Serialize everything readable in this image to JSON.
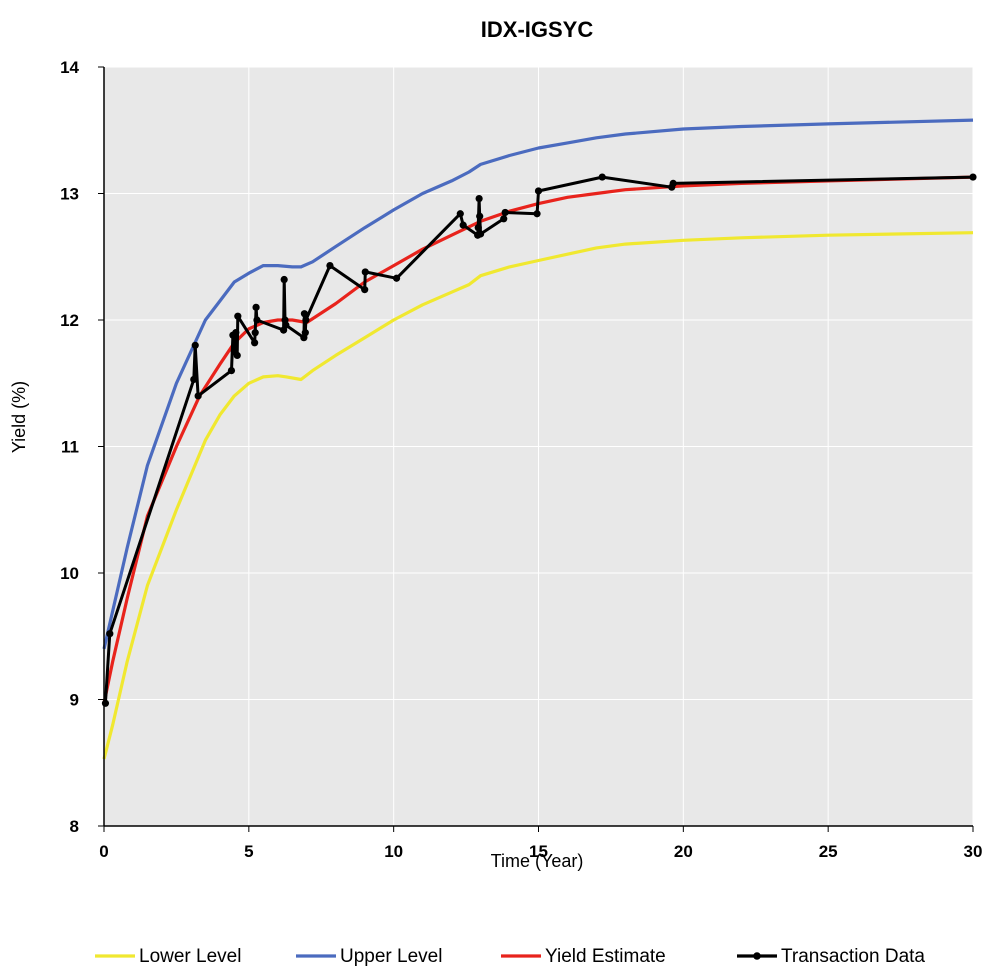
{
  "chart_data": {
    "type": "line",
    "title": "IDX-IGSYC",
    "xlabel": "Time (Year)",
    "ylabel": "Yield (%)",
    "xlim": [
      0,
      30
    ],
    "ylim": [
      8,
      14
    ],
    "xticks": [
      0,
      5,
      10,
      15,
      20,
      25,
      30
    ],
    "yticks": [
      8,
      9,
      10,
      11,
      12,
      13,
      14
    ],
    "grid": true,
    "legend": "bottom",
    "plot_background": "#e8e8e8",
    "series": [
      {
        "name": "Lower Level",
        "color": "#f0e830",
        "markers": false,
        "x": [
          0,
          0.3,
          0.8,
          1.5,
          2.5,
          3.5,
          4.0,
          4.5,
          5.0,
          5.5,
          6.0,
          6.3,
          6.8,
          7.2,
          8,
          9,
          10,
          11,
          12,
          12.6,
          13,
          14,
          15,
          16,
          17,
          18,
          20,
          22,
          25,
          30
        ],
        "y": [
          8.53,
          8.8,
          9.3,
          9.9,
          10.5,
          11.05,
          11.25,
          11.4,
          11.5,
          11.55,
          11.56,
          11.55,
          11.53,
          11.6,
          11.72,
          11.86,
          12.0,
          12.12,
          12.22,
          12.28,
          12.35,
          12.42,
          12.47,
          12.52,
          12.57,
          12.6,
          12.63,
          12.65,
          12.67,
          12.69
        ]
      },
      {
        "name": "Upper Level",
        "color": "#4b6bbf",
        "markers": false,
        "x": [
          0,
          0.3,
          0.8,
          1.5,
          2.5,
          3.5,
          4.0,
          4.5,
          5.0,
          5.5,
          6.0,
          6.5,
          6.8,
          7.2,
          8,
          9,
          10,
          11,
          12,
          12.6,
          13,
          14,
          15,
          16,
          17,
          18,
          20,
          22,
          25,
          30
        ],
        "y": [
          9.4,
          9.7,
          10.2,
          10.85,
          11.5,
          12.0,
          12.15,
          12.3,
          12.37,
          12.43,
          12.43,
          12.42,
          12.42,
          12.46,
          12.58,
          12.73,
          12.87,
          13.0,
          13.1,
          13.17,
          13.23,
          13.3,
          13.36,
          13.4,
          13.44,
          13.47,
          13.51,
          13.53,
          13.55,
          13.58
        ]
      },
      {
        "name": "Yield Estimate",
        "color": "#e8231c",
        "markers": false,
        "x": [
          0,
          0.3,
          0.8,
          1.5,
          2.5,
          3.3,
          4.0,
          4.5,
          5.0,
          5.5,
          6.0,
          6.5,
          7.0,
          8,
          9,
          10,
          11,
          12,
          13,
          14,
          15,
          16,
          17,
          18,
          20,
          22,
          25,
          30
        ],
        "y": [
          8.97,
          9.3,
          9.8,
          10.45,
          11.0,
          11.4,
          11.65,
          11.82,
          11.93,
          11.98,
          12.0,
          12.0,
          11.98,
          12.13,
          12.3,
          12.43,
          12.56,
          12.67,
          12.78,
          12.86,
          12.92,
          12.97,
          13.0,
          13.03,
          13.06,
          13.08,
          13.1,
          13.13
        ]
      },
      {
        "name": "Transaction Data",
        "color": "#000000",
        "markers": true,
        "x": [
          0.05,
          0.2,
          3.1,
          3.15,
          3.25,
          4.4,
          4.45,
          4.5,
          4.55,
          4.6,
          4.62,
          5.2,
          5.22,
          5.25,
          5.28,
          6.2,
          6.22,
          6.25,
          6.28,
          6.9,
          6.92,
          6.95,
          6.97,
          7.8,
          9.0,
          9.02,
          10.1,
          12.3,
          12.4,
          12.9,
          12.92,
          12.95,
          12.97,
          13.0,
          13.8,
          13.85,
          14.95,
          15.0,
          17.2,
          19.6,
          19.65,
          30.0
        ],
        "y": [
          8.97,
          9.52,
          11.53,
          11.8,
          11.4,
          11.6,
          11.88,
          11.75,
          11.9,
          11.72,
          12.03,
          11.82,
          11.9,
          12.1,
          12.0,
          11.92,
          12.32,
          12.0,
          11.96,
          11.86,
          12.05,
          11.9,
          12.0,
          12.43,
          12.24,
          12.38,
          12.33,
          12.84,
          12.75,
          12.67,
          12.73,
          12.96,
          12.82,
          12.68,
          12.8,
          12.85,
          12.84,
          13.02,
          13.13,
          13.05,
          13.08,
          13.13
        ]
      }
    ]
  }
}
